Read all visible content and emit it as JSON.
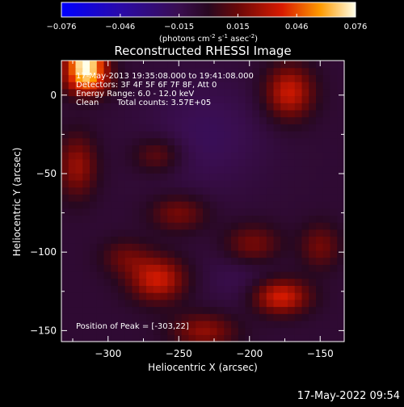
{
  "colorbar": {
    "ticks": [
      "-0.076",
      "-0.046",
      "-0.015",
      "0.015",
      "0.046",
      "0.076"
    ],
    "unit_parts": [
      "(photons cm",
      "-2",
      " s",
      "-1",
      " asec",
      "-2",
      ")"
    ]
  },
  "chart_data": {
    "type": "heatmap",
    "title": "Reconstructed RHESSI Image",
    "xlabel": "Heliocentric X (arcsec)",
    "ylabel": "Heliocentric Y (arcsec)",
    "xlim": [
      -333,
      -133
    ],
    "ylim": [
      -157,
      22
    ],
    "zlim": [
      -0.076,
      0.076
    ],
    "x_ticks": [
      -300,
      -250,
      -200,
      -150
    ],
    "y_ticks": [
      0,
      -50,
      -100,
      -150
    ],
    "x_tick_labels": [
      "−300",
      "−250",
      "−200",
      "−150"
    ],
    "y_tick_labels": [
      "0",
      "−50",
      "−100",
      "−150"
    ],
    "peak_position": [
      -303,
      22
    ],
    "annotations": {
      "time_range": "17-May-2013 19:35:08.000 to 19:41:08.000",
      "detectors": "Detectors: 3F 4F 5F 6F 7F 8F, Att 0",
      "energy": "Energy Range: 6.0 - 12.0 keV",
      "clean_label": "Clean",
      "counts": "Total counts: 3.57E+05",
      "peak": "Position of Peak = [-303,22]"
    },
    "sources": [
      {
        "x": -316,
        "y": 21,
        "intensity": 1.0,
        "sx": 10,
        "sy": 9
      },
      {
        "x": -315,
        "y": 8,
        "intensity": 0.45,
        "sx": 12,
        "sy": 7
      },
      {
        "x": -172,
        "y": 2,
        "intensity": 0.55,
        "sx": 12,
        "sy": 12
      },
      {
        "x": -322,
        "y": -45,
        "intensity": 0.4,
        "sx": 10,
        "sy": 14
      },
      {
        "x": -265,
        "y": -38,
        "intensity": 0.28,
        "sx": 12,
        "sy": 8
      },
      {
        "x": -250,
        "y": -75,
        "intensity": 0.32,
        "sx": 14,
        "sy": 8
      },
      {
        "x": -198,
        "y": -95,
        "intensity": 0.35,
        "sx": 14,
        "sy": 9
      },
      {
        "x": -288,
        "y": -103,
        "intensity": 0.25,
        "sx": 12,
        "sy": 8
      },
      {
        "x": -265,
        "y": -117,
        "intensity": 0.55,
        "sx": 14,
        "sy": 10
      },
      {
        "x": -178,
        "y": -128,
        "intensity": 0.6,
        "sx": 14,
        "sy": 8
      },
      {
        "x": -232,
        "y": -150,
        "intensity": 0.38,
        "sx": 16,
        "sy": 8
      },
      {
        "x": -150,
        "y": -96,
        "intensity": 0.3,
        "sx": 10,
        "sy": 10
      },
      {
        "x": -230,
        "y": -25,
        "intensity": -0.15,
        "sx": 30,
        "sy": 25
      },
      {
        "x": -205,
        "y": -115,
        "intensity": -0.12,
        "sx": 20,
        "sy": 15
      }
    ],
    "background_level": -0.08
  },
  "footer": {
    "timestamp": "17-May-2022 09:54"
  }
}
